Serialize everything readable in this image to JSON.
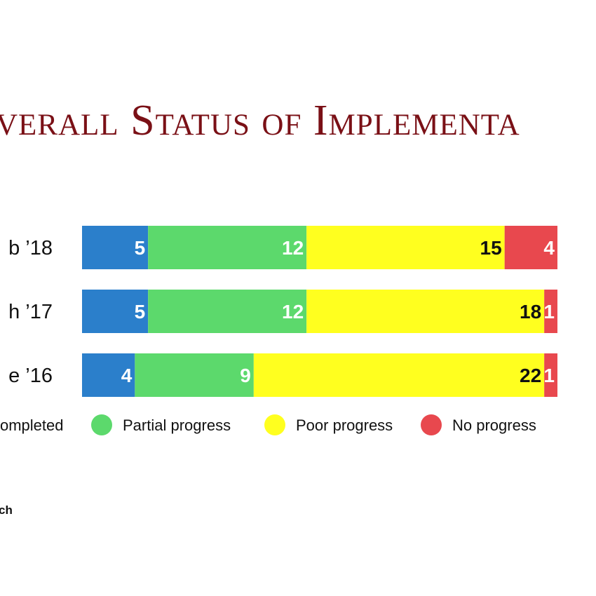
{
  "chart_data": {
    "type": "stacked_bar_horizontal",
    "title": "verall Status of Implementa",
    "categories": [
      "b ’18",
      "h ’17",
      "e ’16"
    ],
    "series": [
      {
        "name": "ompleted",
        "color": "#2b7fcb",
        "values": [
          5,
          5,
          4
        ]
      },
      {
        "name": "Partial progress",
        "color": "#5cd96c",
        "values": [
          12,
          12,
          9
        ]
      },
      {
        "name": "Poor progress",
        "color": "#ffff1f",
        "values": [
          15,
          18,
          22
        ]
      },
      {
        "name": "No progress",
        "color": "#e8484e",
        "values": [
          4,
          1,
          1
        ]
      }
    ],
    "footnote": "ch"
  }
}
